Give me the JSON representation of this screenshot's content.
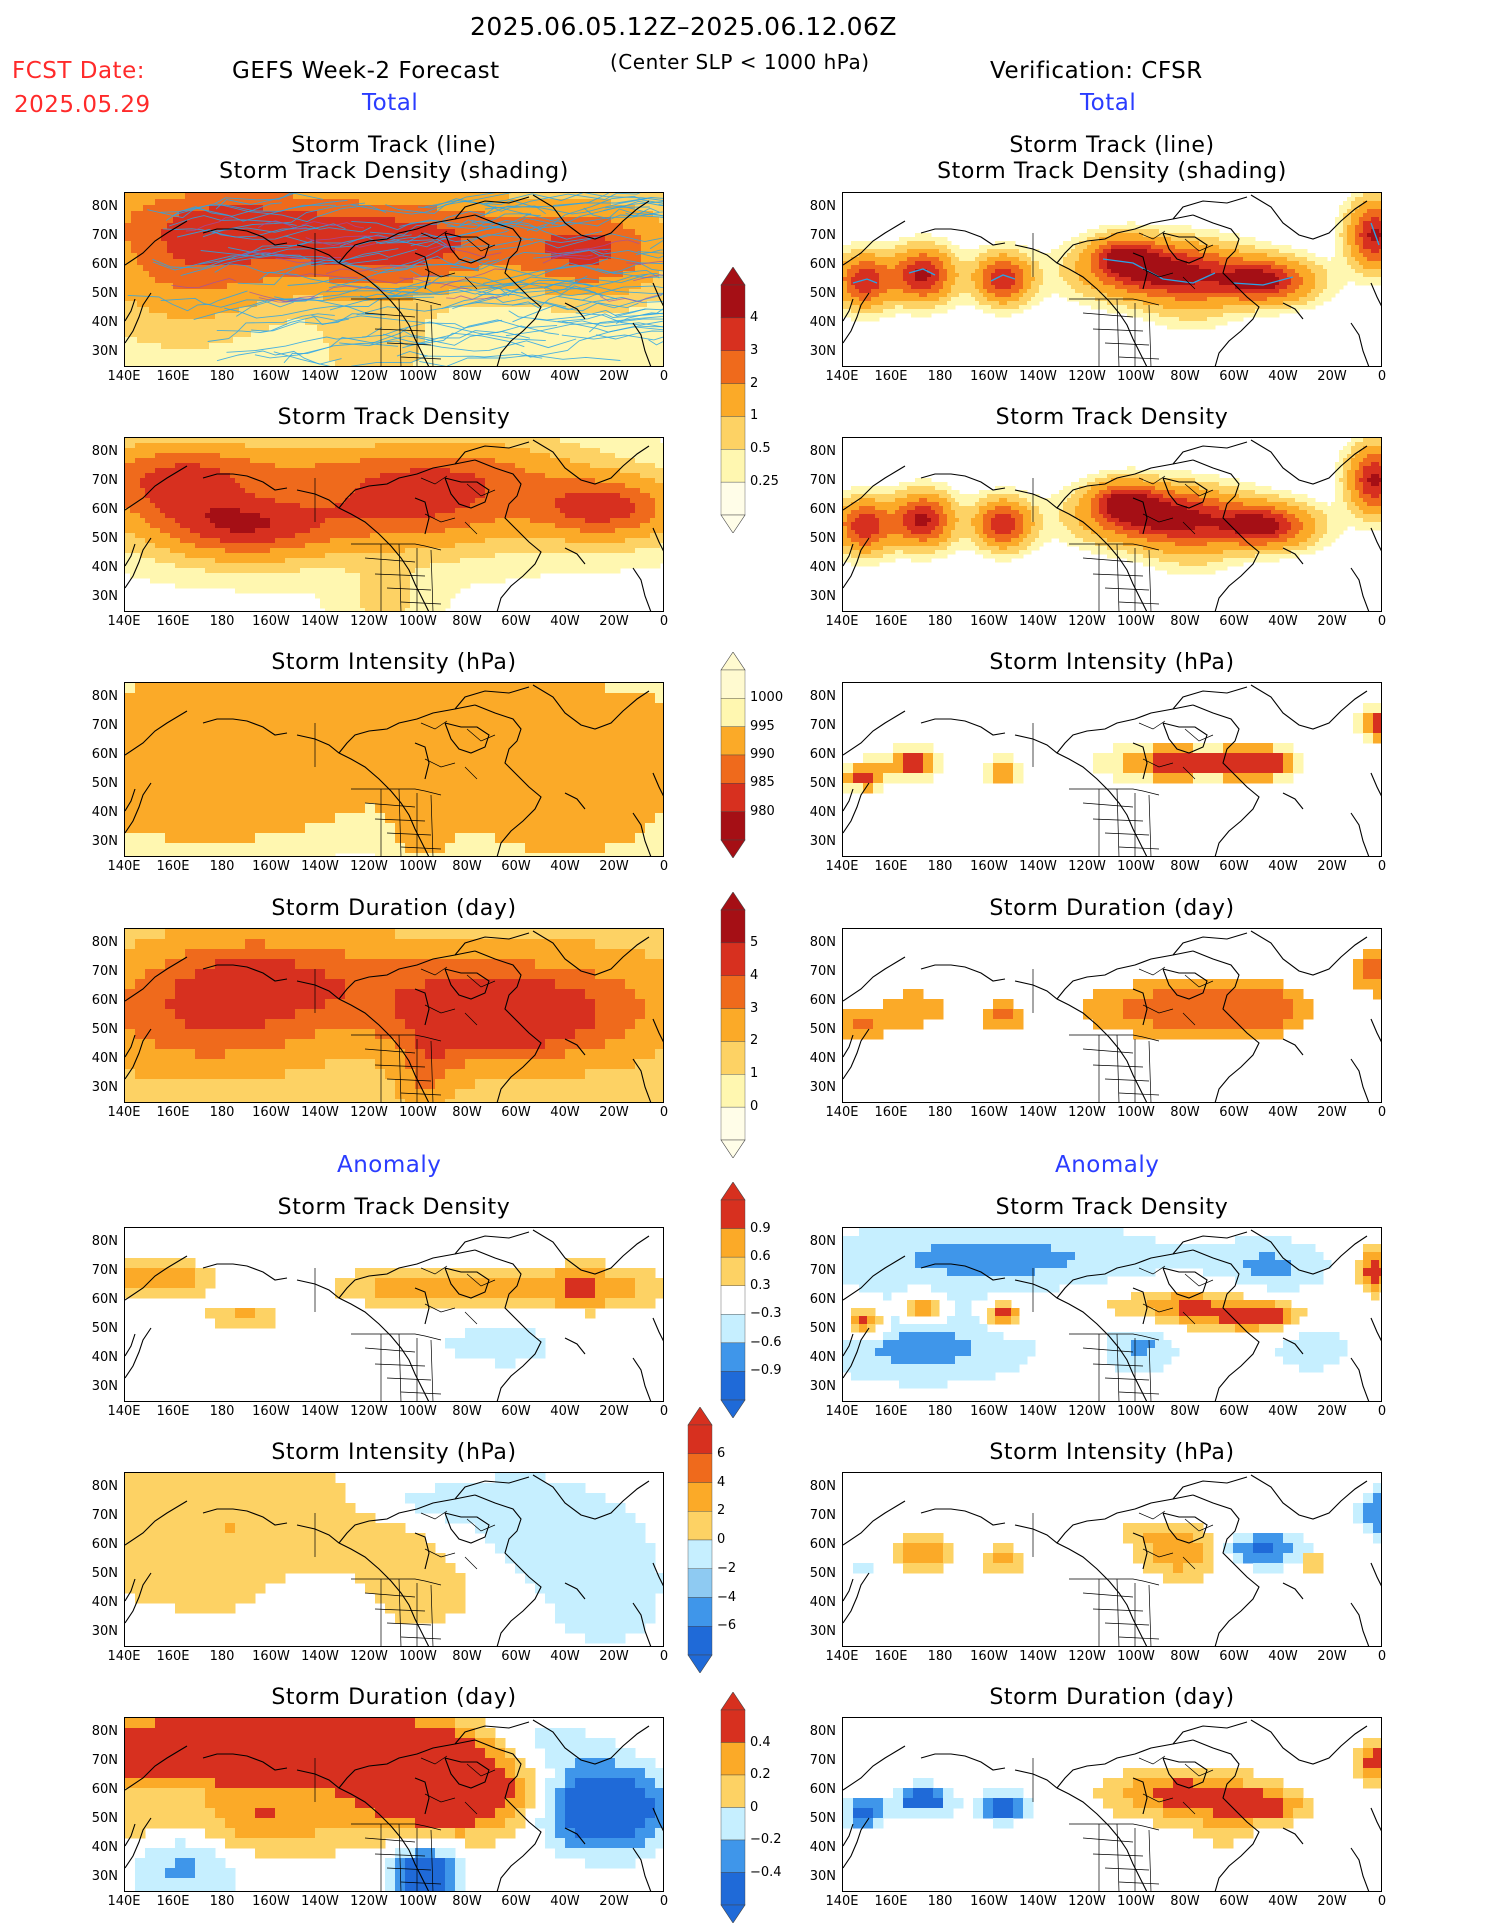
{
  "header": {
    "date_range": "2025.06.05.12Z–2025.06.12.06Z",
    "fcst_label": "FCST Date:",
    "fcst_date": "2025.05.29",
    "left_title": "GEFS Week-2 Forecast",
    "subtitle": "(Center SLP < 1000 hPa)",
    "right_title": "Verification: CFSR",
    "total_label": "Total",
    "anomaly_label": "Anomaly"
  },
  "panel_titles": {
    "track_line": "Storm Track (line)",
    "track_shading": "Storm Track Density (shading)",
    "density": "Storm Track Density",
    "intensity": "Storm Intensity (hPa)",
    "duration": "Storm Duration (day)"
  },
  "axes": {
    "lat_ticks": [
      "80N",
      "70N",
      "60N",
      "50N",
      "40N",
      "30N"
    ],
    "lon_ticks": [
      "140E",
      "160E",
      "180",
      "160W",
      "140W",
      "120W",
      "100W",
      "80W",
      "60W",
      "40W",
      "20W",
      "0"
    ]
  },
  "colorbars": {
    "density_total": [
      "4",
      "3",
      "2",
      "1",
      "0.5",
      "0.25"
    ],
    "intensity_total": [
      "1000",
      "995",
      "990",
      "985",
      "980"
    ],
    "duration_total": [
      "5",
      "4",
      "3",
      "2",
      "1",
      "0"
    ],
    "density_anom": [
      "0.9",
      "0.6",
      "0.3",
      "−0.3",
      "−0.6",
      "−0.9"
    ],
    "intensity_anom": [
      "6",
      "4",
      "2",
      "0",
      "−2",
      "−4",
      "−6"
    ],
    "duration_anom": [
      "0.4",
      "0.2",
      "0",
      "−0.2",
      "−0.4"
    ]
  },
  "palette": {
    "lt_yellow": "#fff7b0",
    "yellow": "#fdd264",
    "orange": "#fbaa28",
    "dk_orange": "#ef6a1c",
    "red": "#d7301f",
    "dk_red": "#a50f15",
    "lt_blue": "#c6efff",
    "blue1": "#8ecaf2",
    "blue2": "#3f96ea",
    "blue3": "#1f6ad8",
    "track_blue": "#2aa4e8",
    "title_blue": "#2a3cff",
    "title_red": "#ff2a2a"
  }
}
